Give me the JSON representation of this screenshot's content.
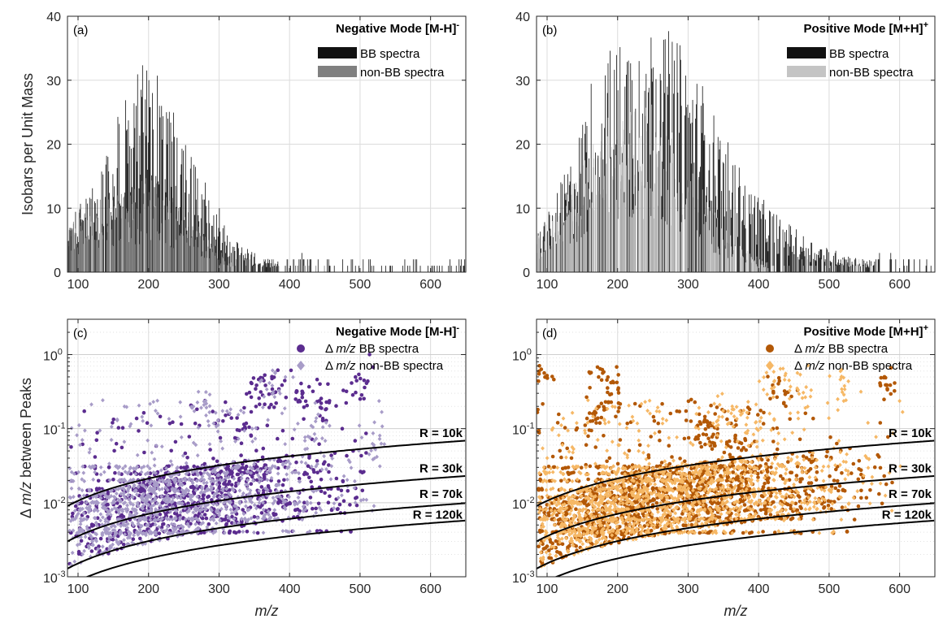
{
  "chart_data": [
    {
      "type": "bar",
      "panel": "(a)",
      "title": "Negative Mode [M-H]",
      "title_sup": "-",
      "xlim": [
        85,
        650
      ],
      "ylim": [
        0,
        40
      ],
      "ylabel": "Isobars per Unit Mass",
      "xticks": [
        "100",
        "200",
        "300",
        "400",
        "500",
        "600"
      ],
      "yticks": [
        "0",
        "10",
        "20",
        "30",
        "40"
      ],
      "grid": true,
      "legend": "top-right",
      "series": [
        {
          "name": "BB spectra",
          "color": "#111111",
          "profile": [
            [
              85,
              5
            ],
            [
              110,
              8
            ],
            [
              130,
              10
            ],
            [
              150,
              15
            ],
            [
              170,
              19
            ],
            [
              190,
              22
            ],
            [
              200,
              23
            ],
            [
              210,
              22
            ],
            [
              230,
              18
            ],
            [
              250,
              14
            ],
            [
              270,
              11
            ],
            [
              290,
              7
            ],
            [
              310,
              5
            ],
            [
              330,
              3
            ],
            [
              360,
              1.5
            ],
            [
              400,
              1
            ],
            [
              450,
              0.6
            ],
            [
              520,
              0.3
            ],
            [
              600,
              0.15
            ],
            [
              650,
              0
            ]
          ],
          "peaks": [
            [
              200,
              30
            ],
            [
              205,
              28
            ],
            [
              195,
              27
            ],
            [
              182,
              26
            ],
            [
              225,
              25
            ],
            [
              215,
              26
            ],
            [
              240,
              21
            ],
            [
              260,
              18
            ],
            [
              280,
              14
            ],
            [
              300,
              10
            ]
          ]
        },
        {
          "name": "non-BB spectra",
          "color": "#808080",
          "profile": [
            [
              85,
              5
            ],
            [
              110,
              7
            ],
            [
              140,
              8
            ],
            [
              170,
              9
            ],
            [
              200,
              10
            ],
            [
              230,
              8
            ],
            [
              260,
              6
            ],
            [
              290,
              3
            ],
            [
              310,
              1.5
            ],
            [
              340,
              0.5
            ],
            [
              380,
              0.2
            ],
            [
              450,
              0
            ]
          ],
          "peaks": [
            [
              155,
              12
            ],
            [
              200,
              12.5
            ],
            [
              240,
              10
            ]
          ]
        }
      ]
    },
    {
      "type": "bar",
      "panel": "(b)",
      "title": "Positive Mode [M+H]",
      "title_sup": "+",
      "xlim": [
        85,
        650
      ],
      "ylim": [
        0,
        40
      ],
      "ylabel": "",
      "xticks": [
        "100",
        "200",
        "300",
        "400",
        "500",
        "600"
      ],
      "yticks": [
        "0",
        "10",
        "20",
        "30",
        "40"
      ],
      "grid": true,
      "legend": "top-right",
      "series": [
        {
          "name": "BB spectra",
          "color": "#111111",
          "profile": [
            [
              85,
              4
            ],
            [
              110,
              8
            ],
            [
              140,
              13
            ],
            [
              160,
              20
            ],
            [
              180,
              23
            ],
            [
              200,
              24
            ],
            [
              220,
              26
            ],
            [
              240,
              27
            ],
            [
              260,
              26
            ],
            [
              280,
              25
            ],
            [
              300,
              22
            ],
            [
              320,
              20
            ],
            [
              340,
              16
            ],
            [
              360,
              13
            ],
            [
              380,
              10
            ],
            [
              400,
              8
            ],
            [
              430,
              6
            ],
            [
              460,
              4
            ],
            [
              500,
              2.5
            ],
            [
              540,
              1.5
            ],
            [
              580,
              1
            ],
            [
              620,
              0.6
            ],
            [
              650,
              0.4
            ]
          ],
          "peaks": [
            [
              230,
              33
            ],
            [
              240,
              31
            ],
            [
              250,
              32
            ],
            [
              260,
              31
            ],
            [
              220,
              30
            ],
            [
              210,
              29
            ],
            [
              270,
              29
            ],
            [
              185,
              28
            ],
            [
              290,
              26
            ],
            [
              310,
              24
            ],
            [
              330,
              20
            ],
            [
              350,
              17
            ]
          ]
        },
        {
          "name": "non-BB spectra",
          "color": "#c4c4c4",
          "profile": [
            [
              85,
              4
            ],
            [
              110,
              6
            ],
            [
              140,
              10
            ],
            [
              160,
              13
            ],
            [
              180,
              16
            ],
            [
              200,
              17
            ],
            [
              220,
              18
            ],
            [
              240,
              18
            ],
            [
              260,
              17
            ],
            [
              280,
              15
            ],
            [
              300,
              12
            ],
            [
              320,
              9
            ],
            [
              340,
              6
            ],
            [
              360,
              4
            ],
            [
              380,
              2.5
            ],
            [
              400,
              1.5
            ],
            [
              440,
              0.6
            ],
            [
              500,
              0.2
            ],
            [
              560,
              0
            ]
          ],
          "peaks": [
            [
              215,
              20
            ],
            [
              230,
              21
            ],
            [
              250,
              19
            ]
          ]
        }
      ]
    },
    {
      "type": "scatter",
      "panel": "(c)",
      "title": "Negative Mode [M-H]",
      "title_sup": "-",
      "xlim": [
        85,
        650
      ],
      "ylim": [
        0.001,
        3
      ],
      "yscale": "log",
      "xlabel": "m/z",
      "ylabel_delta": "Δ",
      "ylabel_mz": "m/z",
      "ylabel_rest": "between Peaks",
      "xticks": [
        "100",
        "200",
        "300",
        "400",
        "500",
        "600"
      ],
      "grid": true,
      "legend": "top-right",
      "legend_entries": [
        {
          "delta": "Δ",
          "mz": "m/z",
          "rest": "BB spectra",
          "color": "#5b2c8f",
          "marker": "circle"
        },
        {
          "delta": "Δ",
          "mz": "m/z",
          "rest": "non-BB spectra",
          "color": "#a89cc8",
          "marker": "diamond"
        }
      ],
      "series": [
        {
          "name": "BB spectra",
          "color": "#5b2c8f",
          "marker": "circle",
          "count": 900,
          "xmax": 510,
          "xmode": 260,
          "clusters": [
            [
              360,
              0.35
            ],
            [
              380,
              0.4
            ],
            [
              420,
              0.28
            ],
            [
              455,
              0.22
            ],
            [
              500,
              0.45
            ],
            [
              330,
              0.12
            ]
          ]
        },
        {
          "name": "non-BB spectra",
          "color": "#a89cc8",
          "marker": "diamond",
          "count": 1100,
          "xmax": 560,
          "xmode": 190,
          "clusters": [
            [
              380,
              0.35
            ],
            [
              440,
              0.1
            ],
            [
              520,
              0.06
            ],
            [
              280,
              0.2
            ]
          ]
        }
      ],
      "curves": [
        {
          "label": "R = 10k",
          "R": 10000
        },
        {
          "label": "R = 30k",
          "R": 30000
        },
        {
          "label": "R = 70k",
          "R": 70000
        },
        {
          "label": "R = 120k",
          "R": 120000
        }
      ]
    },
    {
      "type": "scatter",
      "panel": "(d)",
      "title": "Positive Mode [M+H]",
      "title_sup": "+",
      "xlim": [
        85,
        650
      ],
      "ylim": [
        0.001,
        3
      ],
      "yscale": "log",
      "xlabel": "m/z",
      "ylabel_delta": "",
      "ylabel_mz": "",
      "ylabel_rest": "",
      "xticks": [
        "100",
        "200",
        "300",
        "400",
        "500",
        "600"
      ],
      "grid": true,
      "legend": "top-right",
      "legend_entries": [
        {
          "delta": "Δ",
          "mz": "m/z",
          "rest": "BB spectra",
          "color": "#b35806",
          "marker": "circle"
        },
        {
          "delta": "Δ",
          "mz": "m/z",
          "rest": "non-BB spectra",
          "color": "#f6b866",
          "marker": "diamond"
        }
      ],
      "series": [
        {
          "name": "BB spectra",
          "color": "#b35806",
          "marker": "circle",
          "count": 1400,
          "xmax": 600,
          "xmode": 250,
          "clusters": [
            [
              95,
              0.4
            ],
            [
              175,
              0.45
            ],
            [
              190,
              0.3
            ],
            [
              170,
              0.15
            ],
            [
              320,
              0.1
            ],
            [
              340,
              0.08
            ],
            [
              370,
              0.06
            ],
            [
              430,
              0.3
            ],
            [
              580,
              0.4
            ]
          ]
        },
        {
          "name": "non-BB spectra",
          "color": "#f6b866",
          "marker": "diamond",
          "count": 1500,
          "xmax": 620,
          "xmode": 220,
          "clusters": [
            [
              420,
              0.4
            ],
            [
              460,
              0.3
            ],
            [
              400,
              0.1
            ],
            [
              520,
              0.4
            ],
            [
              360,
              0.18
            ]
          ]
        }
      ],
      "curves": [
        {
          "label": "R = 10k",
          "R": 10000
        },
        {
          "label": "R = 30k",
          "R": 30000
        },
        {
          "label": "R = 70k",
          "R": 70000
        },
        {
          "label": "R = 120k",
          "R": 120000
        }
      ]
    }
  ]
}
